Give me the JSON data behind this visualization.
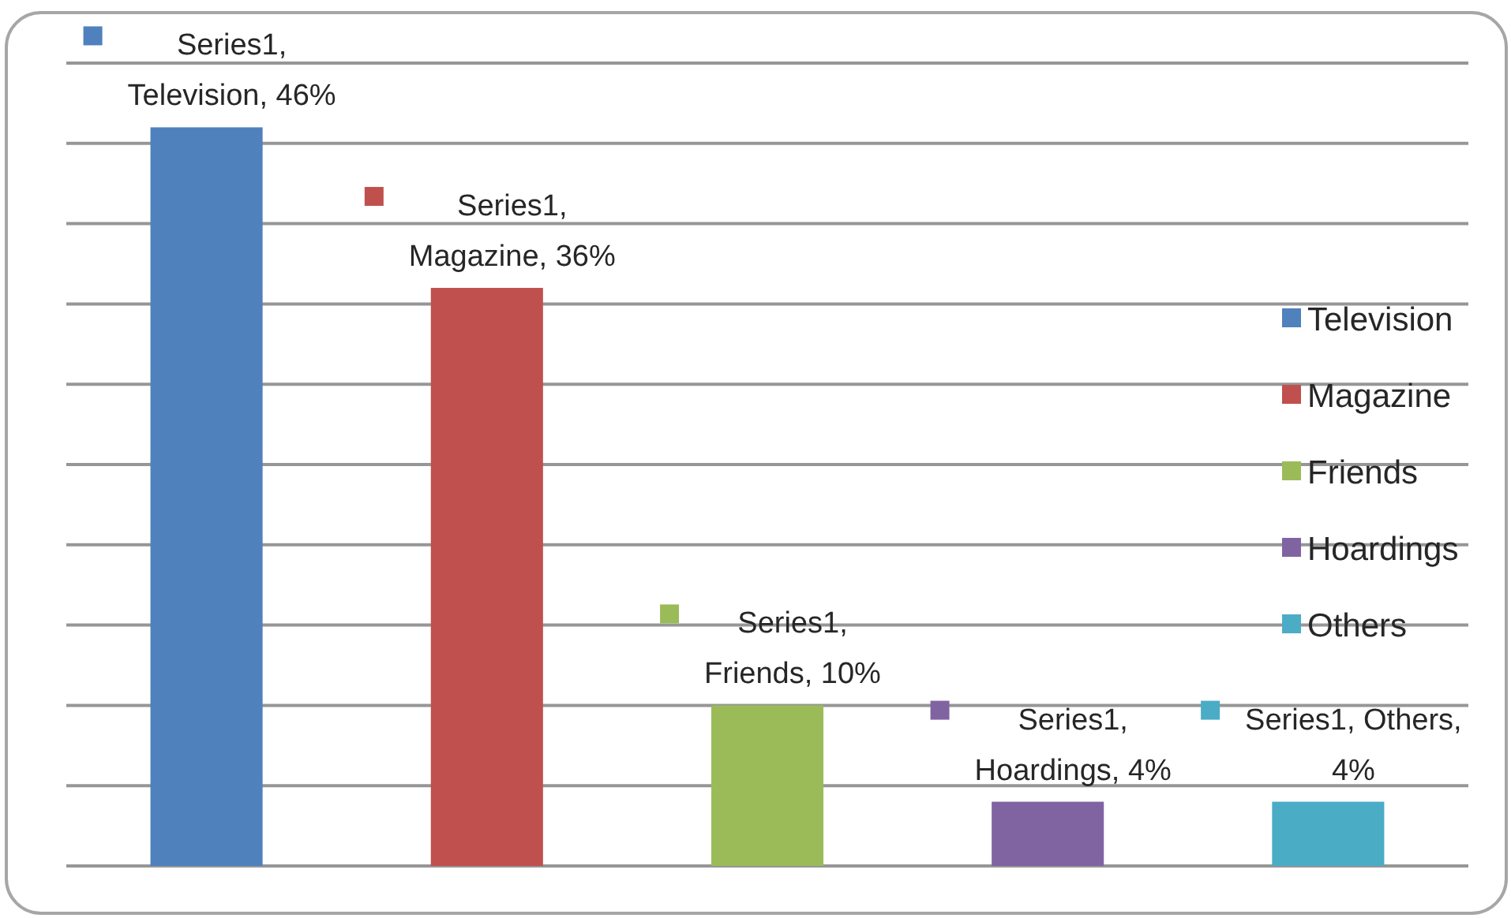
{
  "chart_data": {
    "type": "bar",
    "categories": [
      null,
      null,
      null,
      null,
      null
    ],
    "series": [
      {
        "name": "Television",
        "color": "#4f81bd",
        "values": [
          46,
          null,
          null,
          null,
          null
        ],
        "value_labels": [
          "Series1, Television, 46%",
          null,
          null,
          null,
          null
        ]
      },
      {
        "name": "Magazine",
        "color": "#c0504d",
        "values": [
          null,
          36,
          null,
          null,
          null
        ],
        "value_labels": [
          null,
          "Series1, Magazine, 36%",
          null,
          null,
          null
        ]
      },
      {
        "name": "Friends",
        "color": "#9bbb59",
        "values": [
          null,
          null,
          10,
          null,
          null
        ],
        "value_labels": [
          null,
          null,
          "Series1, Friends, 10%",
          null,
          null
        ]
      },
      {
        "name": "Hoardings",
        "color": "#8064a2",
        "values": [
          null,
          null,
          null,
          4,
          null
        ],
        "value_labels": [
          null,
          null,
          null,
          "Series1, Hoardings, 4%",
          null
        ]
      },
      {
        "name": "Others",
        "color": "#4bacc6",
        "values": [
          null,
          null,
          null,
          null,
          4
        ],
        "value_labels": [
          null,
          null,
          null,
          null,
          "Series1, Others, 4%"
        ]
      }
    ],
    "stacked": true,
    "ylim": [
      0,
      50
    ],
    "yticks": [
      {
        "value": 0,
        "label": null
      },
      {
        "value": 5,
        "label": null
      },
      {
        "value": 10,
        "label": null
      },
      {
        "value": 15,
        "label": null
      },
      {
        "value": 20,
        "label": null
      },
      {
        "value": 25,
        "label": null
      },
      {
        "value": 30,
        "label": null
      },
      {
        "value": 35,
        "label": null
      },
      {
        "value": 40,
        "label": null
      },
      {
        "value": 45,
        "label": null
      },
      {
        "value": 50,
        "label": null
      }
    ],
    "grid": "y",
    "legend": "right"
  }
}
